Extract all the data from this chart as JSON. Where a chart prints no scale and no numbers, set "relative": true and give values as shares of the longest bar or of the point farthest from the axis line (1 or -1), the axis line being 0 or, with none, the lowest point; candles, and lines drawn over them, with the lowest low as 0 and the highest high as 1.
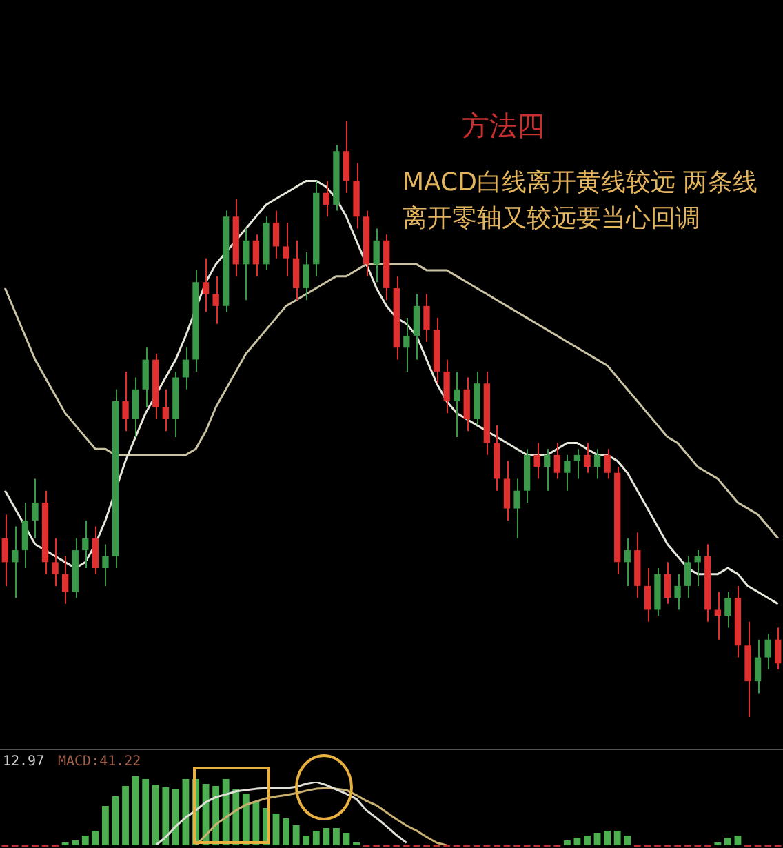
{
  "chart_data": [
    {
      "type": "candlestick",
      "relative": true,
      "categories": [
        null,
        null,
        null,
        null,
        null,
        null,
        null,
        null,
        null,
        null,
        null,
        null,
        null,
        null,
        null,
        null,
        null,
        null,
        null,
        null,
        null,
        null,
        null,
        null,
        null,
        null,
        null,
        null,
        null,
        null,
        null,
        null,
        null,
        null,
        null,
        null,
        null,
        null,
        null,
        null,
        null,
        null,
        null,
        null,
        null,
        null,
        null,
        null,
        null,
        null,
        null,
        null,
        null,
        null,
        null,
        null,
        null,
        null,
        null,
        null,
        null,
        null,
        null,
        null,
        null,
        null,
        null,
        null,
        null,
        null,
        null,
        null,
        null,
        null,
        null,
        null,
        null,
        null
      ],
      "ohlc": [
        [
          0.3,
          0.34,
          0.22,
          0.26
        ],
        [
          0.26,
          0.32,
          0.2,
          0.28
        ],
        [
          0.28,
          0.36,
          0.25,
          0.33
        ],
        [
          0.33,
          0.4,
          0.3,
          0.36
        ],
        [
          0.36,
          0.38,
          0.24,
          0.26
        ],
        [
          0.26,
          0.3,
          0.22,
          0.24
        ],
        [
          0.24,
          0.27,
          0.19,
          0.21
        ],
        [
          0.21,
          0.3,
          0.2,
          0.28
        ],
        [
          0.28,
          0.33,
          0.25,
          0.3
        ],
        [
          0.3,
          0.32,
          0.24,
          0.25
        ],
        [
          0.25,
          0.29,
          0.22,
          0.27
        ],
        [
          0.27,
          0.55,
          0.25,
          0.53
        ],
        [
          0.53,
          0.58,
          0.48,
          0.5
        ],
        [
          0.5,
          0.57,
          0.47,
          0.55
        ],
        [
          0.55,
          0.62,
          0.52,
          0.6
        ],
        [
          0.6,
          0.61,
          0.5,
          0.52
        ],
        [
          0.52,
          0.55,
          0.48,
          0.5
        ],
        [
          0.5,
          0.58,
          0.47,
          0.57
        ],
        [
          0.57,
          0.62,
          0.55,
          0.6
        ],
        [
          0.6,
          0.75,
          0.58,
          0.73
        ],
        [
          0.73,
          0.77,
          0.68,
          0.71
        ],
        [
          0.71,
          0.74,
          0.66,
          0.69
        ],
        [
          0.69,
          0.85,
          0.68,
          0.84
        ],
        [
          0.84,
          0.87,
          0.74,
          0.76
        ],
        [
          0.76,
          0.82,
          0.7,
          0.8
        ],
        [
          0.8,
          0.81,
          0.74,
          0.76
        ],
        [
          0.76,
          0.84,
          0.75,
          0.83
        ],
        [
          0.83,
          0.85,
          0.77,
          0.79
        ],
        [
          0.79,
          0.83,
          0.74,
          0.77
        ],
        [
          0.77,
          0.8,
          0.7,
          0.72
        ],
        [
          0.72,
          0.78,
          0.7,
          0.76
        ],
        [
          0.76,
          0.9,
          0.74,
          0.88
        ],
        [
          0.88,
          0.9,
          0.84,
          0.86
        ],
        [
          0.86,
          0.96,
          0.85,
          0.95
        ],
        [
          0.95,
          1.0,
          0.88,
          0.9
        ],
        [
          0.9,
          0.93,
          0.82,
          0.84
        ],
        [
          0.84,
          0.85,
          0.74,
          0.76
        ],
        [
          0.76,
          0.82,
          0.73,
          0.8
        ],
        [
          0.8,
          0.81,
          0.7,
          0.72
        ],
        [
          0.72,
          0.74,
          0.6,
          0.62
        ],
        [
          0.62,
          0.67,
          0.58,
          0.64
        ],
        [
          0.64,
          0.71,
          0.6,
          0.69
        ],
        [
          0.69,
          0.71,
          0.63,
          0.65
        ],
        [
          0.65,
          0.67,
          0.56,
          0.58
        ],
        [
          0.58,
          0.6,
          0.51,
          0.53
        ],
        [
          0.53,
          0.58,
          0.47,
          0.55
        ],
        [
          0.55,
          0.57,
          0.48,
          0.5
        ],
        [
          0.5,
          0.58,
          0.49,
          0.56
        ],
        [
          0.56,
          0.58,
          0.44,
          0.46
        ],
        [
          0.46,
          0.49,
          0.38,
          0.4
        ],
        [
          0.4,
          0.43,
          0.33,
          0.35
        ],
        [
          0.35,
          0.4,
          0.3,
          0.38
        ],
        [
          0.38,
          0.45,
          0.36,
          0.44
        ],
        [
          0.44,
          0.46,
          0.4,
          0.42
        ],
        [
          0.42,
          0.45,
          0.38,
          0.44
        ],
        [
          0.44,
          0.46,
          0.4,
          0.41
        ],
        [
          0.41,
          0.44,
          0.38,
          0.43
        ],
        [
          0.43,
          0.45,
          0.4,
          0.44
        ],
        [
          0.44,
          0.46,
          0.41,
          0.42
        ],
        [
          0.42,
          0.45,
          0.4,
          0.44
        ],
        [
          0.44,
          0.45,
          0.4,
          0.41
        ],
        [
          0.41,
          0.42,
          0.24,
          0.26
        ],
        [
          0.26,
          0.3,
          0.22,
          0.28
        ],
        [
          0.28,
          0.31,
          0.2,
          0.22
        ],
        [
          0.22,
          0.25,
          0.16,
          0.18
        ],
        [
          0.18,
          0.25,
          0.17,
          0.24
        ],
        [
          0.24,
          0.26,
          0.19,
          0.2
        ],
        [
          0.2,
          0.24,
          0.18,
          0.22
        ],
        [
          0.22,
          0.27,
          0.2,
          0.26
        ],
        [
          0.26,
          0.28,
          0.22,
          0.27
        ],
        [
          0.27,
          0.29,
          0.16,
          0.18
        ],
        [
          0.18,
          0.21,
          0.13,
          0.17
        ],
        [
          0.17,
          0.21,
          0.15,
          0.2
        ],
        [
          0.2,
          0.22,
          0.1,
          0.12
        ],
        [
          0.12,
          0.16,
          0.0,
          0.06
        ],
        [
          0.06,
          0.13,
          0.04,
          0.1
        ],
        [
          0.1,
          0.14,
          0.08,
          0.13
        ],
        [
          0.13,
          0.15,
          0.08,
          0.09
        ]
      ],
      "colors": [
        "#e03030",
        "#3a9a4a",
        "#3a9a4a",
        "#3a9a4a",
        "#e03030",
        "#e03030",
        "#e03030",
        "#3a9a4a",
        "#3a9a4a",
        "#e03030",
        "#3a9a4a",
        "#3a9a4a",
        "#e03030",
        "#3a9a4a",
        "#3a9a4a",
        "#e03030",
        "#e03030",
        "#3a9a4a",
        "#3a9a4a",
        "#3a9a4a",
        "#e03030",
        "#e03030",
        "#3a9a4a",
        "#e03030",
        "#3a9a4a",
        "#e03030",
        "#3a9a4a",
        "#e03030",
        "#e03030",
        "#e03030",
        "#3a9a4a",
        "#3a9a4a",
        "#e03030",
        "#3a9a4a",
        "#e03030",
        "#e03030",
        "#e03030",
        "#3a9a4a",
        "#e03030",
        "#e03030",
        "#3a9a4a",
        "#3a9a4a",
        "#e03030",
        "#e03030",
        "#e03030",
        "#3a9a4a",
        "#e03030",
        "#3a9a4a",
        "#e03030",
        "#e03030",
        "#e03030",
        "#3a9a4a",
        "#3a9a4a",
        "#e03030",
        "#3a9a4a",
        "#e03030",
        "#3a9a4a",
        "#3a9a4a",
        "#e03030",
        "#3a9a4a",
        "#e03030",
        "#e03030",
        "#3a9a4a",
        "#e03030",
        "#e03030",
        "#3a9a4a",
        "#e03030",
        "#3a9a4a",
        "#3a9a4a",
        "#3a9a4a",
        "#e03030",
        "#e03030",
        "#3a9a4a",
        "#e03030",
        "#e03030",
        "#3a9a4a",
        "#3a9a4a",
        "#e03030"
      ],
      "series": [
        {
          "type": "line",
          "color": "#e6e6da",
          "values": [
            0.38,
            0.35,
            0.32,
            0.29,
            0.28,
            0.27,
            0.26,
            0.25,
            0.26,
            0.29,
            0.33,
            null,
            0.43,
            0.47,
            0.51,
            0.54,
            0.57,
            0.6,
            0.64,
            null,
            0.73,
            0.76,
            0.78,
            0.8,
            0.82,
            0.84,
            0.86,
            0.87,
            0.88,
            0.89,
            0.9,
            0.9,
            0.89,
            0.87,
            0.84,
            0.8,
            0.76,
            0.72,
            0.69,
            0.67,
            0.66,
            0.64,
            0.6,
            0.56,
            0.53,
            0.51,
            0.5,
            0.49,
            0.48,
            0.47,
            0.46,
            0.45,
            0.44,
            0.44,
            0.44,
            0.45,
            0.46,
            0.46,
            0.45,
            0.44,
            0.44,
            0.43,
            0.41,
            0.38,
            0.35,
            0.32,
            0.29,
            0.27,
            0.25,
            0.24,
            0.24,
            0.24,
            0.25,
            0.24,
            0.22,
            0.21,
            0.2,
            0.19
          ]
        },
        {
          "type": "line",
          "color": "#c9c3a4",
          "values": [
            0.72,
            0.68,
            0.64,
            0.6,
            0.57,
            0.54,
            0.51,
            0.49,
            0.47,
            0.45,
            0.45,
            0.44,
            0.44,
            0.44,
            0.44,
            0.44,
            0.44,
            0.44,
            0.44,
            0.45,
            0.48,
            0.52,
            0.55,
            0.58,
            0.61,
            0.63,
            0.65,
            0.67,
            0.69,
            0.7,
            0.71,
            0.72,
            0.73,
            0.74,
            0.74,
            0.75,
            0.76,
            0.76,
            0.76,
            0.76,
            0.76,
            0.76,
            0.75,
            0.75,
            0.75,
            0.74,
            0.73,
            0.72,
            0.71,
            0.7,
            0.69,
            0.68,
            0.67,
            0.66,
            0.65,
            0.64,
            0.63,
            0.62,
            0.61,
            0.6,
            0.59,
            0.57,
            0.55,
            0.53,
            0.51,
            0.49,
            0.47,
            0.46,
            0.44,
            0.42,
            0.41,
            0.4,
            0.38,
            0.36,
            0.35,
            0.34,
            0.32,
            0.3
          ]
        }
      ],
      "annotations": [
        "方法四",
        "MACD白线离开黄线较远 两条线离开零轴又较远要当心回调"
      ]
    },
    {
      "type": "bar",
      "relative": true,
      "categories": [
        null,
        null,
        null,
        null,
        null,
        null,
        null,
        null,
        null,
        null,
        null,
        null,
        null,
        null,
        null,
        null,
        null,
        null,
        null,
        null,
        null,
        null,
        null,
        null,
        null,
        null,
        null,
        null,
        null,
        null,
        null,
        null,
        null,
        null,
        null,
        null,
        null,
        null,
        null,
        null,
        null,
        null,
        null,
        null,
        null,
        null,
        null,
        null,
        null,
        null,
        null,
        null,
        null,
        null,
        null,
        null,
        null,
        null,
        null,
        null,
        null,
        null,
        null,
        null,
        null,
        null,
        null,
        null,
        null,
        null,
        null,
        null,
        null,
        null,
        null,
        null,
        null,
        null
      ],
      "values": [
        -0.02,
        -0.02,
        -0.02,
        -0.02,
        -0.02,
        -0.02,
        0.04,
        0.07,
        0.14,
        0.21,
        0.57,
        0.71,
        0.86,
        1.0,
        0.96,
        0.88,
        0.84,
        0.82,
        0.96,
        0.96,
        0.89,
        0.86,
        0.96,
        0.82,
        0.75,
        0.64,
        0.54,
        0.46,
        0.39,
        0.29,
        0.14,
        0.21,
        0.25,
        0.25,
        0.18,
        0.04,
        -0.02,
        -0.02,
        -0.02,
        -0.02,
        -0.02,
        -0.02,
        -0.02,
        -0.02,
        -0.02,
        -0.02,
        -0.02,
        -0.02,
        -0.02,
        -0.02,
        -0.02,
        -0.02,
        -0.02,
        -0.02,
        -0.02,
        -0.02,
        0.07,
        0.11,
        0.14,
        0.18,
        0.21,
        0.21,
        0.14,
        -0.02,
        -0.02,
        -0.02,
        -0.02,
        -0.02,
        -0.02,
        -0.02,
        -0.02,
        0.04,
        0.11,
        0.14,
        -0.02,
        -0.02,
        -0.02,
        -0.02
      ],
      "colors": [
        "#c03030",
        "#c03030",
        "#c03030",
        "#c03030",
        "#c03030",
        "#c03030",
        "#4caf50",
        "#4caf50",
        "#4caf50",
        "#4caf50",
        "#4caf50",
        "#4caf50",
        "#4caf50",
        "#4caf50",
        "#4caf50",
        "#4caf50",
        "#4caf50",
        "#4caf50",
        "#4caf50",
        "#4caf50",
        "#4caf50",
        "#4caf50",
        "#4caf50",
        "#4caf50",
        "#4caf50",
        "#4caf50",
        "#4caf50",
        "#4caf50",
        "#4caf50",
        "#4caf50",
        "#4caf50",
        "#4caf50",
        "#4caf50",
        "#4caf50",
        "#4caf50",
        "#4caf50",
        "#c03030",
        "#c03030",
        "#c03030",
        "#c03030",
        "#c03030",
        "#c03030",
        "#c03030",
        "#c03030",
        "#c03030",
        "#c03030",
        "#c03030",
        "#c03030",
        "#c03030",
        "#c03030",
        "#c03030",
        "#c03030",
        "#c03030",
        "#c03030",
        "#c03030",
        "#c03030",
        "#4caf50",
        "#4caf50",
        "#4caf50",
        "#4caf50",
        "#4caf50",
        "#4caf50",
        "#4caf50",
        "#c03030",
        "#c03030",
        "#c03030",
        "#c03030",
        "#c03030",
        "#c03030",
        "#c03030",
        "#c03030",
        "#4caf50",
        "#4caf50",
        "#4caf50",
        "#c03030",
        "#c03030",
        "#c03030",
        "#c03030"
      ],
      "annotations": [
        "12.97",
        "MACD:41.22"
      ]
    },
    {
      "type": "line",
      "relative": true,
      "categories": [
        null,
        null,
        null,
        null,
        null,
        null,
        null,
        null,
        null,
        null,
        null,
        null,
        null,
        null,
        null,
        null,
        null,
        null,
        null,
        null,
        null,
        null,
        null,
        null,
        null,
        null,
        null,
        null,
        null,
        null
      ],
      "series": [
        {
          "color": "#e0e0d8",
          "values": [
            0.0,
            0.13,
            0.3,
            0.44,
            0.55,
            0.68,
            0.76,
            0.8,
            0.85,
            0.87,
            0.89,
            0.9,
            0.9,
            0.9,
            0.92,
            0.97,
            1.0,
            0.95,
            0.88,
            0.81,
            0.73,
            0.55,
            0.43,
            0.3,
            0.16,
            0.04,
            null,
            null,
            null,
            null
          ]
        },
        {
          "color": "#c8b070",
          "values": [
            null,
            null,
            null,
            null,
            0.0,
            0.16,
            0.33,
            0.44,
            0.55,
            0.64,
            0.69,
            0.74,
            0.77,
            0.79,
            0.82,
            0.86,
            0.89,
            0.9,
            0.89,
            0.87,
            0.79,
            0.7,
            0.63,
            0.52,
            0.41,
            0.31,
            0.23,
            0.13,
            0.04,
            0.0
          ]
        }
      ]
    }
  ]
}
